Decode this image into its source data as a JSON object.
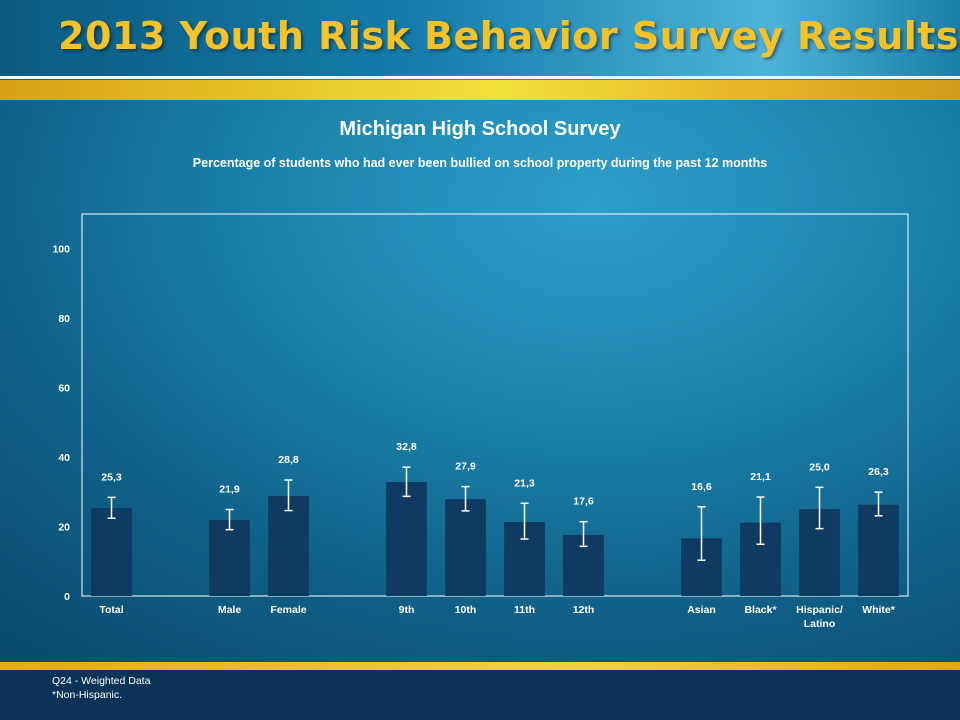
{
  "header": {
    "title": "2013 Youth Risk Behavior Survey Results"
  },
  "chart_data": {
    "type": "bar",
    "title": "Michigan High School Survey",
    "subtitle": "Percentage of students who had ever been bullied on school property during the past 12 months",
    "categories": [
      "Total",
      "Male",
      "Female",
      "9th",
      "10th",
      "11th",
      "12th",
      "Asian",
      "Black*",
      "Hispanic/ Latino",
      "White*"
    ],
    "groups": [
      [
        "Total"
      ],
      [
        "Male",
        "Female"
      ],
      [
        "9th",
        "10th",
        "11th",
        "12th"
      ],
      [
        "Asian",
        "Black*",
        "Hispanic/ Latino",
        "White*"
      ]
    ],
    "values": [
      25.3,
      21.9,
      28.8,
      32.8,
      27.9,
      21.3,
      17.6,
      16.6,
      21.1,
      25.0,
      26.3
    ],
    "value_labels": [
      "25,3",
      "21,9",
      "28,8",
      "32,8",
      "27,9",
      "21,3",
      "17,6",
      "16,6",
      "21,1",
      "25,0",
      "26,3"
    ],
    "error_bars": [
      [
        22.4,
        28.4
      ],
      [
        19.1,
        24.9
      ],
      [
        24.6,
        33.4
      ],
      [
        28.7,
        37.1
      ],
      [
        24.5,
        31.5
      ],
      [
        16.4,
        26.7
      ],
      [
        14.3,
        21.4
      ],
      [
        10.3,
        25.7
      ],
      [
        14.9,
        28.5
      ],
      [
        19.4,
        31.3
      ],
      [
        23.1,
        29.9
      ]
    ],
    "y_ticks": [
      0,
      20,
      40,
      60,
      80,
      100
    ],
    "ylim": [
      0,
      110
    ],
    "xlabel": "",
    "ylabel": "",
    "grid": false,
    "legend": "none",
    "colors": {
      "bar": "#0f3a62",
      "error_bar": "#ffffff",
      "plot_border": "#ffffff"
    }
  },
  "footnotes": {
    "line1": "Q24 - Weighted Data",
    "line2": "*Non-Hispanic."
  }
}
